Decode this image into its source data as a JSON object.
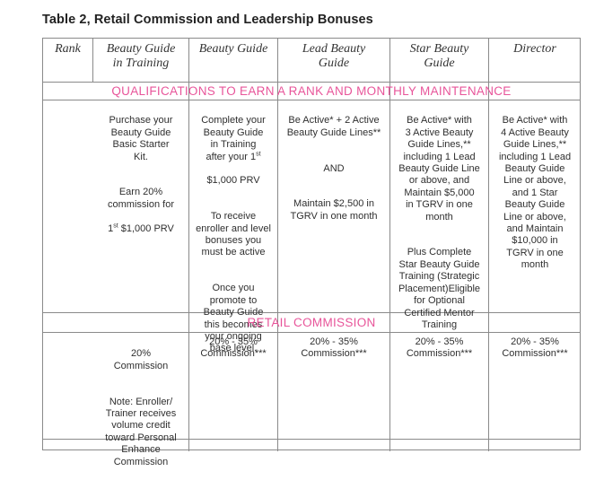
{
  "title": "Table 2, Retail Commission and Leadership Bonuses",
  "columns": [
    {
      "label_line1": "Rank",
      "label_line2": ""
    },
    {
      "label_line1": "Beauty Guide",
      "label_line2": "in Training"
    },
    {
      "label_line1": "Beauty Guide",
      "label_line2": ""
    },
    {
      "label_line1": "Lead Beauty",
      "label_line2": "Guide"
    },
    {
      "label_line1": "Star Beauty",
      "label_line2": "Guide"
    },
    {
      "label_line1": "Director",
      "label_line2": ""
    }
  ],
  "qualifications_heading": "QUALIFICATIONS TO EARN A RANK AND MONTHLY MAINTENANCE",
  "qualifications": {
    "guide_in_training": {
      "text1": "Purchase your\nBeauty Guide\nBasic Starter\nKit.",
      "text2": "Earn 20%\ncommission for",
      "text3_sup": "st",
      "text3_pre": "1",
      "text3_post": " $1,000 PRV"
    },
    "beauty_guide": {
      "line_a": "Complete your\nBeauty Guide\nin Training\nafter your 1",
      "line_a_sup": "st",
      "line_b": "$1,000 PRV",
      "text2": "To receive\nenroller and level\nbonuses you\nmust be active",
      "text3": "Once you\npromote to\nBeauty Guide\nthis becomes\nyour ongoing\nbase level."
    },
    "lead_beauty_guide": {
      "text1": "Be Active* + 2 Active\nBeauty Guide Lines**",
      "and": "AND",
      "text2": "Maintain $2,500 in\nTGRV in one month"
    },
    "star_beauty_guide": {
      "text1": "Be Active* with\n3 Active Beauty\nGuide Lines,**\nincluding 1 Lead\nBeauty Guide Line\nor above, and\nMaintain $5,000\nin TGRV in one\nmonth",
      "text2": "Plus Complete\nStar Beauty Guide\nTraining (Strategic\nPlacement)Eligible\nfor Optional\nCertified Mentor\nTraining"
    },
    "director": {
      "text1": "Be Active* with\n4 Active Beauty\nGuide Lines,**\nincluding 1 Lead\nBeauty Guide\nLine or above,\nand 1 Star\nBeauty Guide\nLine or above,\nand Maintain\n$10,000 in\nTGRV in one\nmonth"
    }
  },
  "retail_heading": "RETAIL COMMISSION",
  "retail": {
    "guide_in_training": "20%\nCommission",
    "guide_in_training_note": "Note: Enroller/\nTrainer receives\nvolume credit\ntoward Personal\nEnhance\nCommission",
    "beauty_guide": "20% - 35%\nCommission***",
    "lead_beauty_guide": "20% - 35%\nCommission***",
    "star_beauty_guide": "20% - 35%\nCommission***",
    "director": "20% - 35%\nCommission***"
  }
}
